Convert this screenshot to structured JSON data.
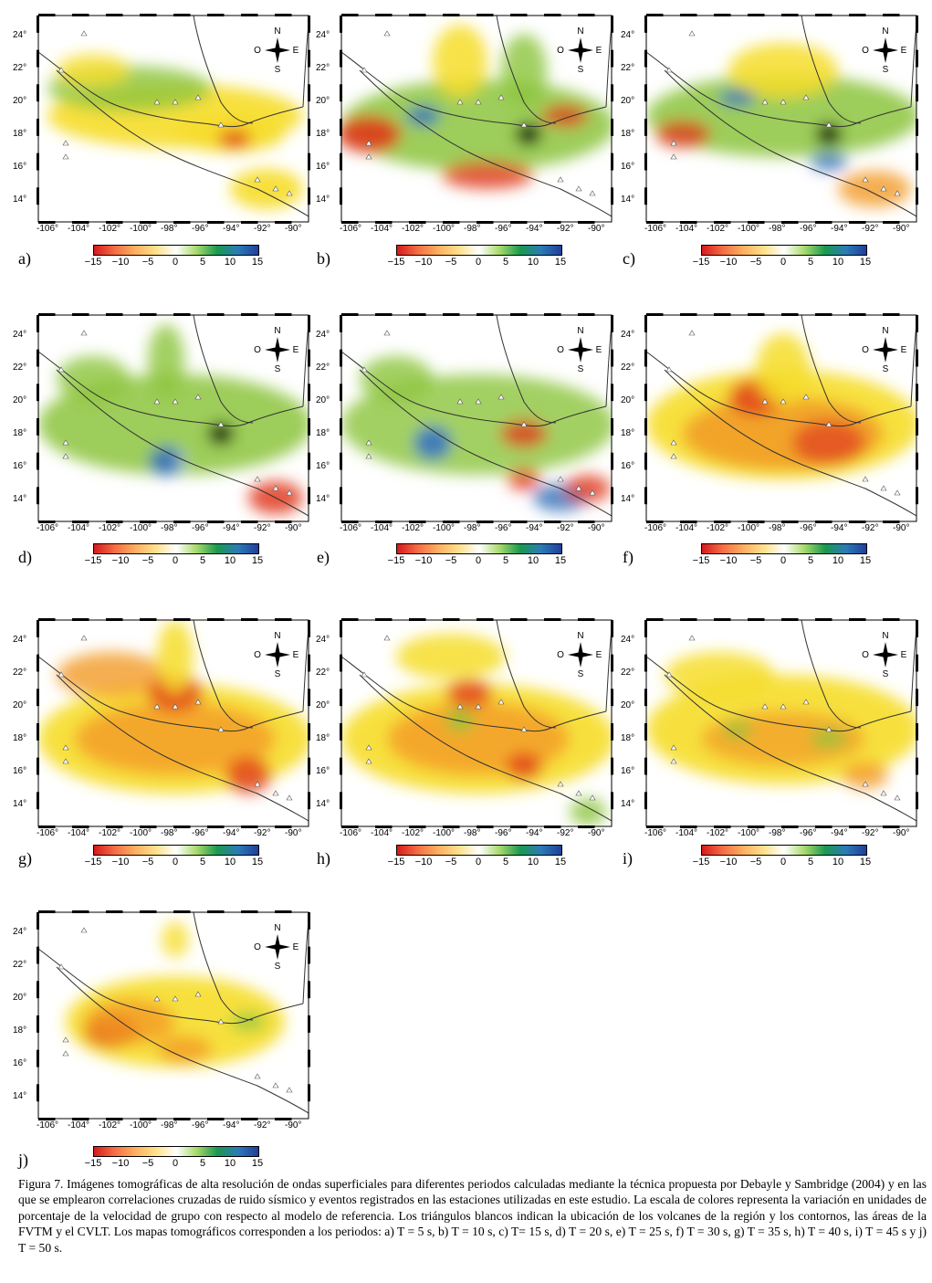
{
  "panels": [
    {
      "label": "a)",
      "period": "T = 5 s"
    },
    {
      "label": "b)",
      "period": "T = 10 s"
    },
    {
      "label": "c)",
      "period": "T = 15 s"
    },
    {
      "label": "d)",
      "period": "T = 20 s"
    },
    {
      "label": "e)",
      "period": "T = 25 s"
    },
    {
      "label": "f)",
      "period": "T = 30 s"
    },
    {
      "label": "g)",
      "period": "T = 35 s"
    },
    {
      "label": "h)",
      "period": "T = 40 s"
    },
    {
      "label": "i)",
      "period": "T = 45 s"
    },
    {
      "label": "j)",
      "period": "T = 50 s"
    }
  ],
  "map": {
    "lon_ticks": [
      "-106°",
      "-104°",
      "-102°",
      "-100°",
      "-98°",
      "-96°",
      "-94°",
      "-92°",
      "-90°"
    ],
    "lat_ticks": [
      "24°",
      "22°",
      "20°",
      "18°",
      "16°",
      "14°"
    ],
    "compass": {
      "n": "N",
      "s": "S",
      "e": "E",
      "o": "O"
    }
  },
  "colorbar": {
    "ticks": [
      "−15",
      "−10",
      "−5",
      "0",
      "5",
      "10",
      "15"
    ],
    "colors": [
      "#d7191c",
      "#f46d43",
      "#fdae61",
      "#fee08b",
      "#ffffff",
      "#a6d96a",
      "#1a9850",
      "#2c7bb6",
      "#1f3f9a"
    ]
  },
  "caption": "Figura 7. Imágenes tomográficas de alta resolución de ondas superficiales para diferentes periodos calculadas mediante la técnica propuesta por Debayle y Sambridge (2004) y en las que se emplearon correlaciones cruzadas de ruido sísmico y eventos registrados en las estaciones utilizadas en este estudio. La escala de colores representa la variación en unidades de porcentaje de la velocidad de grupo con respecto al modelo de referencia. Los triángulos blancos indican la ubicación de los volcanes de la región y los contornos, las áreas de la FVTM y el CVLT. Los mapas tomográficos corresponden a los periodos: a) T = 5 s, b) T = 10 s, c) T= 15 s, d) T = 20 s, e) T = 25 s, f) T = 30 s, g) T = 35 s, h) T = 40 s, i) T = 45 s y j) T = 50 s."
}
